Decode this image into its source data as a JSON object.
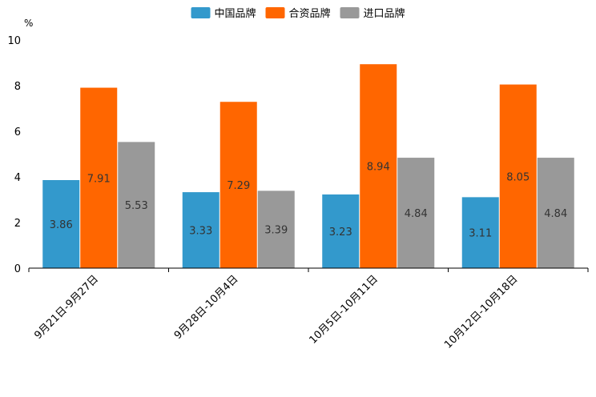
{
  "chart_data": {
    "type": "bar",
    "title": "",
    "unit": "%",
    "xlabel": "",
    "ylabel": "",
    "ylim": [
      0,
      10
    ],
    "yticks": [
      0,
      2,
      4,
      6,
      8,
      10
    ],
    "grid": false,
    "legend_position": "top-center",
    "categories": [
      "9月21日-9月27日",
      "9月28日-10月4日",
      "10月5日-10月11日",
      "10月12日-10月18日"
    ],
    "series": [
      {
        "name": "中国品牌",
        "color": "#3399cc",
        "values": [
          3.86,
          3.33,
          3.23,
          3.11
        ]
      },
      {
        "name": "合资品牌",
        "color": "#ff6600",
        "values": [
          7.91,
          7.29,
          8.94,
          8.05
        ]
      },
      {
        "name": "进口品牌",
        "color": "#999999",
        "values": [
          5.53,
          3.39,
          4.84,
          4.84
        ]
      }
    ]
  }
}
